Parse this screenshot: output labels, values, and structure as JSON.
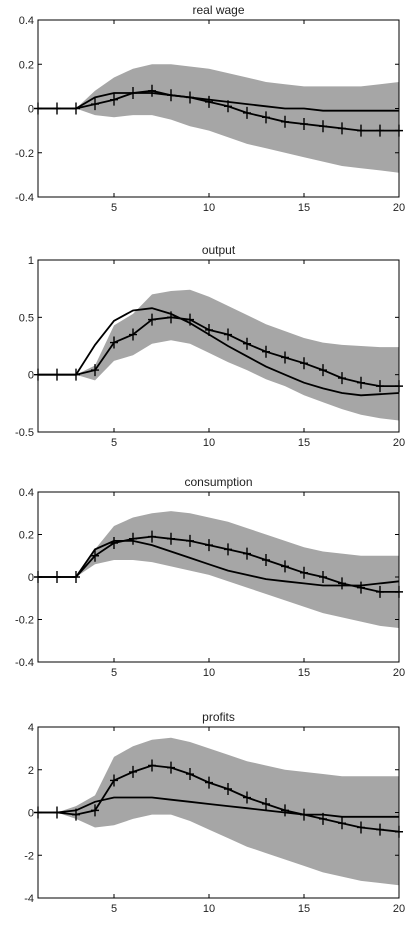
{
  "colors": {
    "band": "#a6a6a6",
    "line": "#000000",
    "axis": "#000000",
    "background": "#ffffff"
  },
  "chart_data": [
    {
      "type": "line",
      "title": "real wage",
      "xlim": [
        1,
        20
      ],
      "ylim": [
        -0.4,
        0.4
      ],
      "xticks": [
        5,
        10,
        15,
        20
      ],
      "xtick_labels": [
        "5",
        "10",
        "15",
        "20"
      ],
      "yticks": [
        -0.4,
        -0.2,
        0,
        0.2,
        0.4
      ],
      "ytick_labels": [
        "-0.4",
        "-0.2",
        "0",
        "0.2",
        "0.4"
      ],
      "x": [
        1,
        2,
        3,
        4,
        5,
        6,
        7,
        8,
        9,
        10,
        11,
        12,
        13,
        14,
        15,
        16,
        17,
        18,
        19,
        20
      ],
      "band": {
        "lower": [
          0,
          0,
          0,
          -0.03,
          -0.04,
          -0.03,
          -0.03,
          -0.05,
          -0.08,
          -0.1,
          -0.13,
          -0.16,
          -0.18,
          -0.2,
          -0.22,
          -0.24,
          -0.26,
          -0.27,
          -0.28,
          -0.29
        ],
        "upper": [
          0,
          0,
          0,
          0.08,
          0.14,
          0.18,
          0.2,
          0.2,
          0.19,
          0.18,
          0.16,
          0.14,
          0.12,
          0.11,
          0.1,
          0.1,
          0.1,
          0.1,
          0.11,
          0.12
        ]
      },
      "series": [
        {
          "style": "marker-line",
          "values": [
            0,
            0,
            0,
            0.02,
            0.04,
            0.07,
            0.08,
            0.06,
            0.05,
            0.03,
            0.01,
            -0.02,
            -0.04,
            -0.06,
            -0.07,
            -0.08,
            -0.09,
            -0.1,
            -0.1,
            -0.1
          ]
        },
        {
          "style": "solid-line",
          "values": [
            0,
            0,
            0,
            0.05,
            0.07,
            0.07,
            0.07,
            0.06,
            0.05,
            0.04,
            0.03,
            0.02,
            0.01,
            0,
            0,
            -0.01,
            -0.01,
            -0.01,
            -0.01,
            -0.01
          ]
        }
      ]
    },
    {
      "type": "line",
      "title": "output",
      "xlim": [
        1,
        20
      ],
      "ylim": [
        -0.5,
        1
      ],
      "xticks": [
        5,
        10,
        15,
        20
      ],
      "xtick_labels": [
        "5",
        "10",
        "15",
        "20"
      ],
      "yticks": [
        -0.5,
        0,
        0.5,
        1
      ],
      "ytick_labels": [
        "-0.5",
        "0",
        "0.5",
        "1"
      ],
      "x": [
        1,
        2,
        3,
        4,
        5,
        6,
        7,
        8,
        9,
        10,
        11,
        12,
        13,
        14,
        15,
        16,
        17,
        18,
        19,
        20
      ],
      "band": {
        "lower": [
          0,
          0,
          0,
          -0.05,
          0.12,
          0.17,
          0.27,
          0.3,
          0.27,
          0.19,
          0.11,
          0.04,
          -0.04,
          -0.1,
          -0.18,
          -0.24,
          -0.3,
          -0.35,
          -0.38,
          -0.4
        ],
        "upper": [
          0,
          0,
          0,
          0.08,
          0.43,
          0.53,
          0.7,
          0.73,
          0.74,
          0.68,
          0.6,
          0.52,
          0.44,
          0.38,
          0.32,
          0.28,
          0.26,
          0.25,
          0.24,
          0.24
        ]
      },
      "series": [
        {
          "style": "marker-line",
          "values": [
            0,
            0,
            0,
            0.04,
            0.28,
            0.35,
            0.48,
            0.5,
            0.48,
            0.39,
            0.35,
            0.27,
            0.2,
            0.15,
            0.1,
            0.04,
            -0.03,
            -0.07,
            -0.1,
            -0.1
          ]
        },
        {
          "style": "solid-line",
          "values": [
            0,
            0,
            0,
            0.26,
            0.47,
            0.56,
            0.58,
            0.53,
            0.45,
            0.35,
            0.25,
            0.16,
            0.07,
            0,
            -0.07,
            -0.12,
            -0.16,
            -0.18,
            -0.17,
            -0.16
          ]
        }
      ]
    },
    {
      "type": "line",
      "title": "consumption",
      "xlim": [
        1,
        20
      ],
      "ylim": [
        -0.4,
        0.4
      ],
      "xticks": [
        5,
        10,
        15,
        20
      ],
      "xtick_labels": [
        "5",
        "10",
        "15",
        "20"
      ],
      "yticks": [
        -0.4,
        -0.2,
        0,
        0.2,
        0.4
      ],
      "ytick_labels": [
        "-0.4",
        "-0.2",
        "0",
        "0.2",
        "0.4"
      ],
      "x": [
        1,
        2,
        3,
        4,
        5,
        6,
        7,
        8,
        9,
        10,
        11,
        12,
        13,
        14,
        15,
        16,
        17,
        18,
        19,
        20
      ],
      "band": {
        "lower": [
          0,
          0,
          0,
          0.06,
          0.08,
          0.08,
          0.07,
          0.05,
          0.03,
          0.01,
          -0.02,
          -0.05,
          -0.08,
          -0.11,
          -0.14,
          -0.17,
          -0.19,
          -0.21,
          -0.23,
          -0.24
        ],
        "upper": [
          0,
          0,
          0,
          0.13,
          0.24,
          0.28,
          0.3,
          0.31,
          0.3,
          0.28,
          0.26,
          0.23,
          0.2,
          0.17,
          0.14,
          0.12,
          0.11,
          0.1,
          0.1,
          0.1
        ]
      },
      "series": [
        {
          "style": "marker-line",
          "values": [
            0,
            0,
            0,
            0.1,
            0.16,
            0.18,
            0.19,
            0.18,
            0.17,
            0.15,
            0.13,
            0.11,
            0.08,
            0.05,
            0.02,
            0,
            -0.03,
            -0.05,
            -0.07,
            -0.07
          ]
        },
        {
          "style": "solid-line",
          "values": [
            0,
            0,
            0,
            0.13,
            0.17,
            0.17,
            0.15,
            0.12,
            0.09,
            0.06,
            0.03,
            0.01,
            -0.01,
            -0.02,
            -0.03,
            -0.04,
            -0.04,
            -0.04,
            -0.03,
            -0.02
          ]
        }
      ]
    },
    {
      "type": "line",
      "title": "profits",
      "xlim": [
        1,
        20
      ],
      "ylim": [
        -4,
        4
      ],
      "xticks": [
        5,
        10,
        15,
        20
      ],
      "xtick_labels": [
        "5",
        "10",
        "15",
        "20"
      ],
      "yticks": [
        -4,
        -2,
        0,
        2,
        4
      ],
      "ytick_labels": [
        "-4",
        "-2",
        "0",
        "2",
        "4"
      ],
      "x": [
        1,
        2,
        3,
        4,
        5,
        6,
        7,
        8,
        9,
        10,
        11,
        12,
        13,
        14,
        15,
        16,
        17,
        18,
        19,
        20
      ],
      "band": {
        "lower": [
          0,
          0,
          -0.3,
          -0.7,
          -0.6,
          -0.3,
          -0.1,
          -0.1,
          -0.4,
          -0.8,
          -1.2,
          -1.6,
          -1.9,
          -2.2,
          -2.5,
          -2.8,
          -3.0,
          -3.2,
          -3.3,
          -3.4
        ],
        "upper": [
          0,
          0,
          0.3,
          0.8,
          2.6,
          3.1,
          3.4,
          3.5,
          3.3,
          3.0,
          2.7,
          2.4,
          2.2,
          2.0,
          1.9,
          1.8,
          1.7,
          1.7,
          1.7,
          1.7
        ]
      },
      "series": [
        {
          "style": "marker-line",
          "values": [
            0,
            0,
            -0.1,
            0.1,
            1.5,
            1.9,
            2.2,
            2.1,
            1.8,
            1.4,
            1.1,
            0.7,
            0.4,
            0.1,
            -0.1,
            -0.3,
            -0.5,
            -0.7,
            -0.8,
            -0.9
          ]
        },
        {
          "style": "solid-line",
          "values": [
            0,
            0,
            0.1,
            0.5,
            0.7,
            0.7,
            0.7,
            0.6,
            0.5,
            0.4,
            0.3,
            0.2,
            0.1,
            0,
            -0.1,
            -0.1,
            -0.2,
            -0.2,
            -0.2,
            -0.2
          ]
        }
      ]
    }
  ]
}
